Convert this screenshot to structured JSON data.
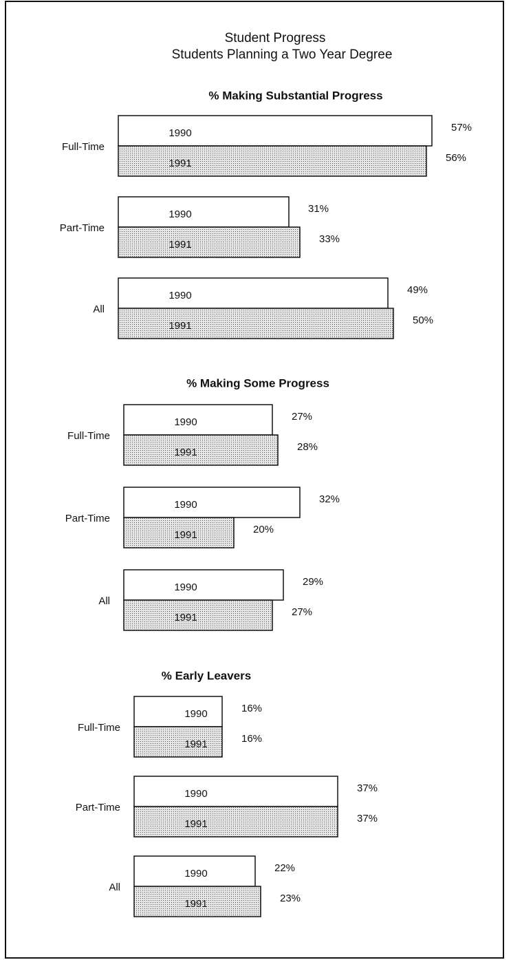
{
  "header": {
    "title": "Student Progress",
    "subtitle": "Students Planning a Two Year Degree"
  },
  "chart_data": [
    {
      "type": "bar",
      "orientation": "horizontal",
      "title": "% Making Substantial Progress",
      "categories": [
        "Full-Time",
        "Part-Time",
        "All"
      ],
      "series": [
        {
          "name": "1990",
          "color": "#ffffff",
          "values": [
            57,
            31,
            49
          ],
          "value_labels": [
            "57%",
            "31%",
            "49%"
          ]
        },
        {
          "name": "1991",
          "color": "#c4c4c4",
          "values": [
            56,
            33,
            50
          ],
          "value_labels": [
            "56%",
            "33%",
            "50%"
          ]
        }
      ]
    },
    {
      "type": "bar",
      "orientation": "horizontal",
      "title": "% Making Some Progress",
      "categories": [
        "Full-Time",
        "Part-Time",
        "All"
      ],
      "series": [
        {
          "name": "1990",
          "color": "#ffffff",
          "values": [
            27,
            32,
            29
          ],
          "value_labels": [
            "27%",
            "32%",
            "29%"
          ]
        },
        {
          "name": "1991",
          "color": "#c4c4c4",
          "values": [
            28,
            20,
            27
          ],
          "value_labels": [
            "28%",
            "20%",
            "27%"
          ]
        }
      ]
    },
    {
      "type": "bar",
      "orientation": "horizontal",
      "title": "% Early Leavers",
      "categories": [
        "Full-Time",
        "Part-Time",
        "All"
      ],
      "series": [
        {
          "name": "1990",
          "color": "#ffffff",
          "values": [
            16,
            37,
            22
          ],
          "value_labels": [
            "16%",
            "37%",
            "22%"
          ]
        },
        {
          "name": "1991",
          "color": "#c4c4c4",
          "values": [
            16,
            37,
            23
          ],
          "value_labels": [
            "16%",
            "37%",
            "23%"
          ]
        }
      ]
    }
  ]
}
